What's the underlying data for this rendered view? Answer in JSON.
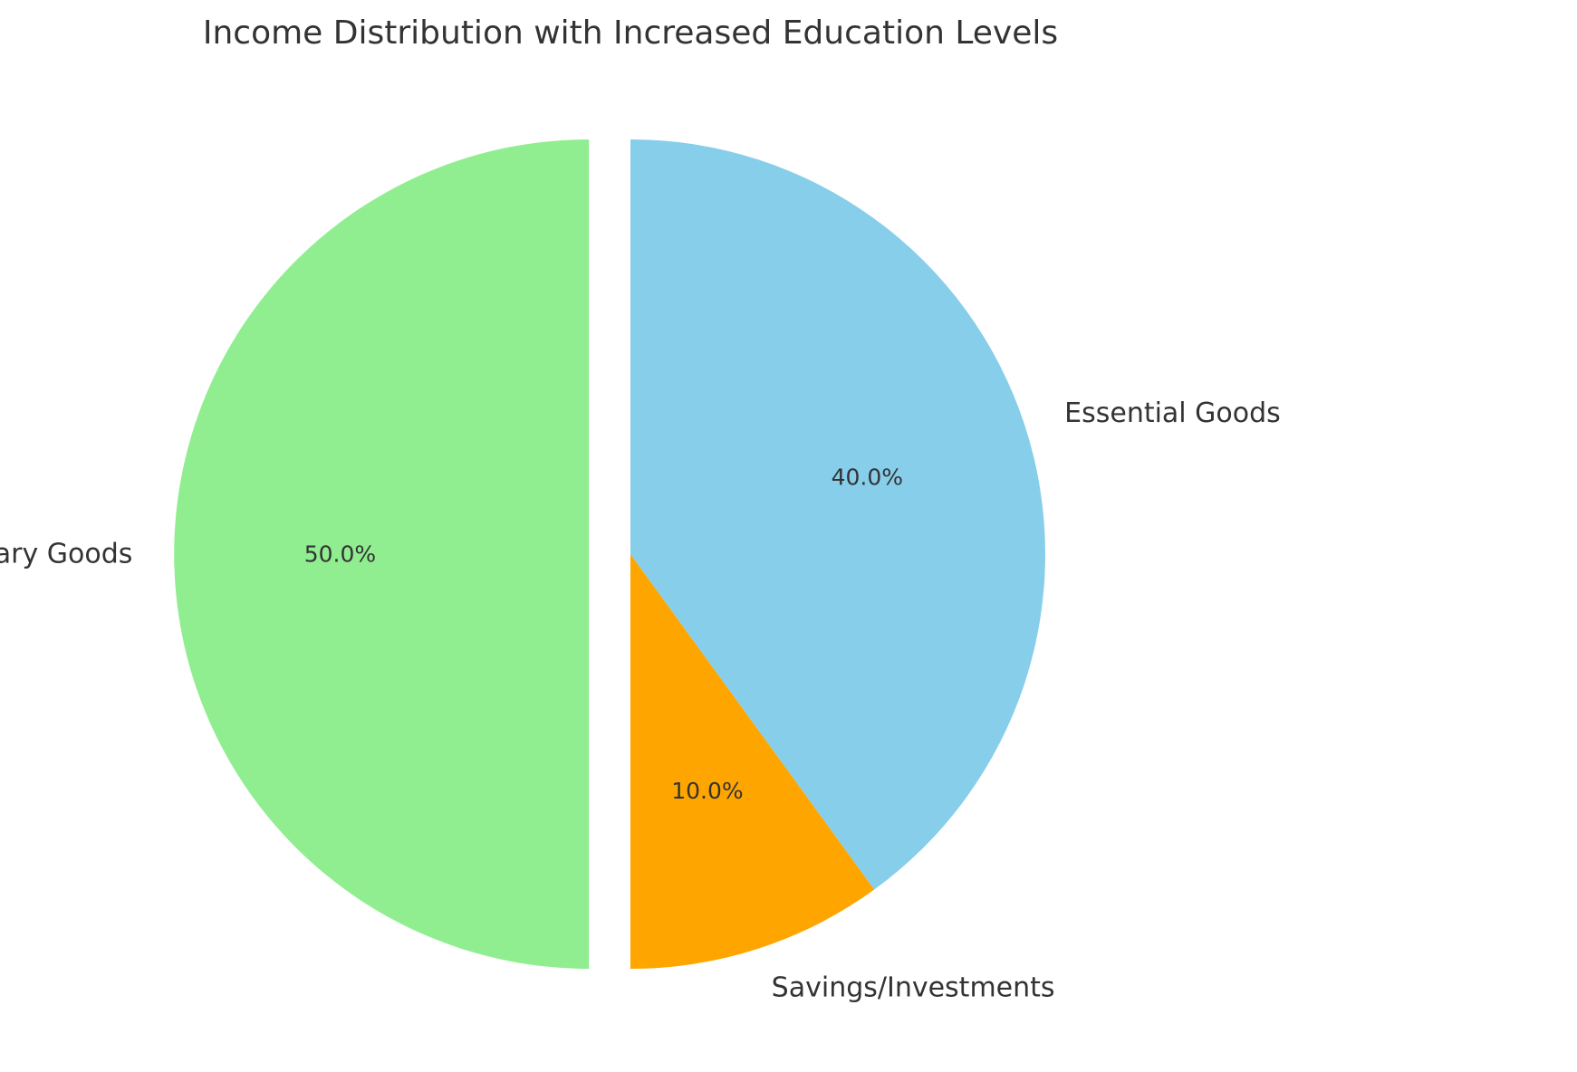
{
  "chart_data": {
    "type": "pie",
    "title": "Income Distribution with Increased Education Levels",
    "start_angle_deg": 90,
    "direction": "counterclockwise",
    "slices": [
      {
        "label": "Consumer Discretionary Goods",
        "value": 50.0,
        "pct_label": "50.0%",
        "color": "#90EE90",
        "exploded": true
      },
      {
        "label": "Savings/Investments",
        "value": 10.0,
        "pct_label": "10.0%",
        "color": "#FFA500",
        "exploded": false
      },
      {
        "label": "Essential Goods",
        "value": 40.0,
        "pct_label": "40.0%",
        "color": "#87CEEB",
        "exploded": false
      }
    ],
    "legend": "none"
  }
}
